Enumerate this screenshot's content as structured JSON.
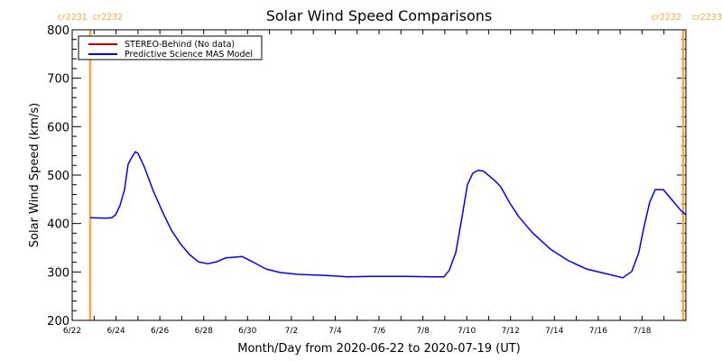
{
  "chart_data": {
    "type": "line",
    "title": "Solar Wind Speed Comparisons",
    "xlabel": "Month/Day from 2020-06-22 to 2020-07-19 (UT)",
    "ylabel": "Solar Wind Speed (km/s)",
    "xlim_days": [
      0,
      28
    ],
    "ylim": [
      200,
      800
    ],
    "x_unit": "days since 2020-06-22 00:00 UT",
    "x_tick_labels": [
      {
        "day": 0,
        "label": "6/22"
      },
      {
        "day": 2,
        "label": "6/24"
      },
      {
        "day": 4,
        "label": "6/26"
      },
      {
        "day": 6,
        "label": "6/28"
      },
      {
        "day": 8,
        "label": "6/30"
      },
      {
        "day": 10,
        "label": "7/2"
      },
      {
        "day": 12,
        "label": "7/4"
      },
      {
        "day": 14,
        "label": "7/6"
      },
      {
        "day": 16,
        "label": "7/8"
      },
      {
        "day": 18,
        "label": "7/10"
      },
      {
        "day": 20,
        "label": "7/12"
      },
      {
        "day": 22,
        "label": "7/14"
      },
      {
        "day": 24,
        "label": "7/16"
      },
      {
        "day": 26,
        "label": "7/18"
      }
    ],
    "y_ticks": [
      200,
      300,
      400,
      500,
      600,
      700,
      800
    ],
    "grid": false,
    "legend": {
      "placement": "top-left",
      "entries": [
        {
          "label": "STEREO-Behind (No data)",
          "color": "#c00000"
        },
        {
          "label": "Predictive Science MAS Model",
          "color": "#0000ff"
        }
      ]
    },
    "carrington_markers": [
      {
        "day": 0.82,
        "label_left": "cr2231",
        "label_right": "cr2232",
        "color": "#ffa540"
      },
      {
        "day": 27.88,
        "label_left": "cr2232",
        "label_right": "cr2233",
        "color": "#ffa540"
      }
    ],
    "series": [
      {
        "name": "Predictive Science MAS Model",
        "color": "#0000ff",
        "x": [
          0.82,
          1.56,
          1.81,
          1.98,
          2.18,
          2.39,
          2.55,
          2.72,
          2.88,
          3.0,
          3.29,
          3.7,
          4.12,
          4.53,
          4.94,
          5.35,
          5.76,
          6.18,
          6.59,
          7.0,
          7.74,
          8.23,
          8.85,
          9.47,
          10.29,
          11.53,
          12.56,
          13.59,
          15.23,
          16.47,
          16.96,
          17.2,
          17.5,
          17.79,
          18.03,
          18.28,
          18.53,
          18.77,
          19.27,
          19.55,
          19.97,
          20.38,
          21.0,
          21.82,
          22.65,
          23.47,
          24.29,
          25.12,
          25.53,
          25.85,
          26.1,
          26.35,
          26.6,
          26.97,
          27.38,
          27.79,
          28.0
        ],
        "y": [
          412,
          411,
          412,
          418,
          437,
          470,
          522,
          537,
          548,
          545,
          517,
          467,
          424,
          386,
          358,
          336,
          321,
          317,
          321,
          329,
          332,
          321,
          306,
          299,
          295,
          293,
          290,
          291,
          291,
          290,
          290,
          303,
          340,
          414,
          480,
          504,
          510,
          508,
          489,
          476,
          442,
          414,
          381,
          347,
          323,
          306,
          297,
          288,
          301,
          340,
          396,
          444,
          470,
          470,
          448,
          426,
          418
        ]
      },
      {
        "name": "STEREO-Behind (No data)",
        "color": "#c00000",
        "x": [],
        "y": []
      }
    ]
  }
}
